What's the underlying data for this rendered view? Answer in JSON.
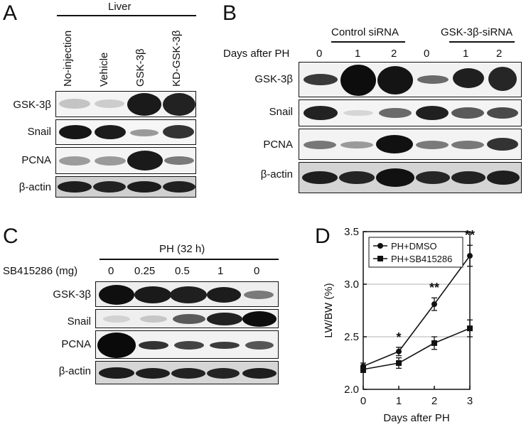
{
  "panels": {
    "A": {
      "letter": "A",
      "group_label": "Liver",
      "lanes": [
        "No-injection",
        "Vehicle",
        "GSK-3β",
        "KD-GSK-3β"
      ],
      "rows": [
        "GSK-3β",
        "Snail",
        "PCNA",
        "β-actin"
      ]
    },
    "B": {
      "letter": "B",
      "group1": "Control siRNA",
      "group2": "GSK-3β-siRNA",
      "days_label": "Days after PH",
      "days": [
        "0",
        "1",
        "2",
        "0",
        "1",
        "2"
      ],
      "rows": [
        "GSK-3β",
        "Snail",
        "PCNA",
        "β-actin"
      ]
    },
    "C": {
      "letter": "C",
      "group_label": "PH (32 h)",
      "dose_label": "SB415286 (mg)",
      "doses": [
        "0",
        "0.25",
        "0.5",
        "1",
        "0"
      ],
      "rows": [
        "GSK-3β",
        "Snail",
        "PCNA",
        "β-actin"
      ]
    },
    "D": {
      "letter": "D"
    }
  },
  "chart_data": {
    "type": "line",
    "xlabel": "Days after PH",
    "ylabel": "LW/BW (%)",
    "x": [
      0,
      1,
      2,
      3
    ],
    "xticks": [
      "0",
      "1",
      "2",
      "3"
    ],
    "yticks": [
      "2.0",
      "2.5",
      "3.0",
      "3.5"
    ],
    "ylim": [
      2.0,
      3.5
    ],
    "grid": true,
    "legend_position": "top-left",
    "series": [
      {
        "name": "PH+DMSO",
        "marker": "circle",
        "values": [
          2.22,
          2.36,
          2.81,
          3.27
        ],
        "errors": [
          0.03,
          0.04,
          0.06,
          0.1
        ]
      },
      {
        "name": "PH+SB415286",
        "marker": "square",
        "values": [
          2.19,
          2.25,
          2.44,
          2.58
        ],
        "errors": [
          0.03,
          0.05,
          0.06,
          0.08
        ]
      }
    ],
    "annotations": [
      {
        "x": 1,
        "text": "*"
      },
      {
        "x": 2,
        "text": "**"
      },
      {
        "x": 3,
        "text": "**"
      }
    ]
  }
}
